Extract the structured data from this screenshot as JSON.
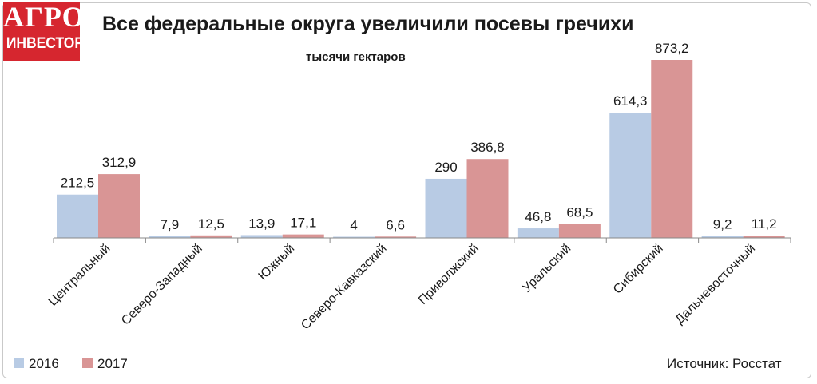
{
  "logo": {
    "line1": "АГРО",
    "line2": "ИНВЕСТОР"
  },
  "header": {
    "title": "Все федеральные округа увеличили посевы гречихи",
    "subtitle": "тысячи гектаров"
  },
  "source": "Источник: Росстат",
  "colors": {
    "s2016": "#b8cbe4",
    "s2017": "#d99595",
    "axis": "#888888",
    "brand": "#d6262f"
  },
  "chart_data": {
    "type": "bar",
    "title": "Все федеральные округа увеличили посевы гречихи",
    "ylabel": "тысячи гектаров",
    "categories": [
      "Центральный",
      "Северо-Западный",
      "Южный",
      "Северо-Кавказский",
      "Приволжский",
      "Уральский",
      "Сибирский",
      "Дальневосточный"
    ],
    "series": [
      {
        "name": "2016",
        "values": [
          212.5,
          7.9,
          13.9,
          4,
          290,
          46.8,
          614.3,
          9.2
        ],
        "labels": [
          "212,5",
          "7,9",
          "13,9",
          "4",
          "290",
          "46,8",
          "614,3",
          "9,2"
        ]
      },
      {
        "name": "2017",
        "values": [
          312.9,
          12.5,
          17.1,
          6.6,
          386.8,
          68.5,
          873.2,
          11.2
        ],
        "labels": [
          "312,9",
          "12,5",
          "17,1",
          "6,6",
          "386,8",
          "68,5",
          "873,2",
          "11,2"
        ]
      }
    ],
    "ylim": [
      0,
      1000
    ],
    "grid": false,
    "legend": "bottom-left"
  }
}
